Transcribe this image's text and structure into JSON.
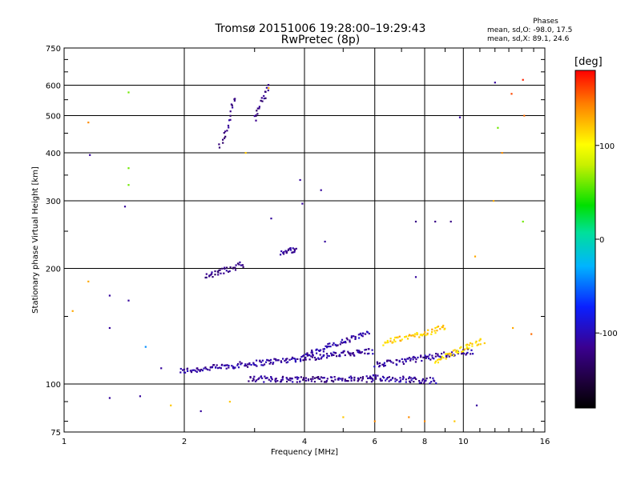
{
  "title": {
    "line1": "Tromsø 20151006 19:28:00–19:29:43",
    "line2": "RwPretec (8p)"
  },
  "phase_box": {
    "heading": "Phases",
    "o_line": "mean, sd,O: -98.0, 17.5",
    "x_line": "mean, sd,X:  89.1, 24.6"
  },
  "colorbar": {
    "unit": "[deg]",
    "tick_labels": [
      "100",
      "0",
      "-100"
    ],
    "tick_values": [
      100,
      0,
      -100
    ],
    "range": [
      -180,
      180
    ]
  },
  "chart_data": {
    "type": "scatter",
    "title": "Tromsø 20151006 19:28:00–19:29:43",
    "subtitle": "RwPretec (8p)",
    "xlabel": "Frequency [MHz]",
    "ylabel": "Stationary phase Virtual Height [km]",
    "x_scale": "log",
    "y_scale": "log",
    "xlim": [
      1,
      16
    ],
    "ylim": [
      75,
      750
    ],
    "x_ticks": [
      1,
      2,
      4,
      6,
      8,
      10,
      16
    ],
    "x_tick_labels": [
      "1",
      "2",
      "4",
      "6",
      "8",
      "10",
      "16"
    ],
    "y_ticks": [
      75,
      100,
      200,
      300,
      400,
      500,
      600,
      750
    ],
    "y_tick_labels": [
      "75",
      "100",
      "200",
      "300",
      "400",
      "500",
      "600",
      "750"
    ],
    "grid": true,
    "color_scale": "phase [deg], -180 to 180",
    "traces": [
      {
        "name": "",
        "x_start": 1.95,
        "x_end": 5.9,
        "y_start": 108,
        "y_end": 122,
        "phase": -110
      },
      {
        "name": "",
        "x_start": 2.9,
        "x_end": 6.0,
        "y_start": 103,
        "y_end": 103,
        "phase": -115
      },
      {
        "name": "",
        "x_start": 4.0,
        "x_end": 5.8,
        "y_start": 119,
        "y_end": 136,
        "phase": -105
      },
      {
        "name": "",
        "x_start": 5.8,
        "x_end": 8.5,
        "y_start": 104,
        "y_end": 102,
        "phase": -110
      },
      {
        "name": "",
        "x_start": 6.0,
        "x_end": 10.5,
        "y_start": 112,
        "y_end": 122,
        "phase": -110
      },
      {
        "name": "",
        "x_start": 2.25,
        "x_end": 2.8,
        "y_start": 190,
        "y_end": 205,
        "phase": -120
      },
      {
        "name": "",
        "x_start": 2.45,
        "x_end": 2.7,
        "y_start": 410,
        "y_end": 560,
        "phase": -120
      },
      {
        "name": "",
        "x_start": 3.0,
        "x_end": 3.25,
        "y_start": 490,
        "y_end": 600,
        "phase": -120
      },
      {
        "name": "",
        "x_start": 3.5,
        "x_end": 3.8,
        "y_start": 220,
        "y_end": 225,
        "phase": -115
      },
      {
        "name": "",
        "x_start": 6.3,
        "x_end": 9.0,
        "y_start": 128,
        "y_end": 140,
        "phase": 120
      },
      {
        "name": "",
        "x_start": 8.5,
        "x_end": 11.2,
        "y_start": 115,
        "y_end": 130,
        "phase": 110
      }
    ],
    "points": [
      {
        "x": 1.05,
        "y": 155,
        "phase": 130
      },
      {
        "x": 1.15,
        "y": 480,
        "phase": 140
      },
      {
        "x": 1.16,
        "y": 395,
        "phase": -110
      },
      {
        "x": 1.15,
        "y": 185,
        "phase": 130
      },
      {
        "x": 1.3,
        "y": 170,
        "phase": -110
      },
      {
        "x": 1.3,
        "y": 140,
        "phase": -110
      },
      {
        "x": 1.45,
        "y": 575,
        "phase": 60
      },
      {
        "x": 1.45,
        "y": 365,
        "phase": 60
      },
      {
        "x": 1.45,
        "y": 330,
        "phase": 60
      },
      {
        "x": 1.42,
        "y": 290,
        "phase": -110
      },
      {
        "x": 1.45,
        "y": 165,
        "phase": -110
      },
      {
        "x": 1.6,
        "y": 125,
        "phase": -40
      },
      {
        "x": 1.75,
        "y": 110,
        "phase": -110
      },
      {
        "x": 1.3,
        "y": 92,
        "phase": -110
      },
      {
        "x": 1.55,
        "y": 93,
        "phase": -110
      },
      {
        "x": 1.85,
        "y": 88,
        "phase": 120
      },
      {
        "x": 2.2,
        "y": 85,
        "phase": -110
      },
      {
        "x": 2.6,
        "y": 90,
        "phase": 120
      },
      {
        "x": 3.25,
        "y": 590,
        "phase": 130
      },
      {
        "x": 2.85,
        "y": 400,
        "phase": 120
      },
      {
        "x": 3.9,
        "y": 340,
        "phase": -110
      },
      {
        "x": 3.95,
        "y": 295,
        "phase": -110
      },
      {
        "x": 4.4,
        "y": 320,
        "phase": -110
      },
      {
        "x": 3.3,
        "y": 270,
        "phase": -110
      },
      {
        "x": 4.5,
        "y": 235,
        "phase": -110
      },
      {
        "x": 7.6,
        "y": 265,
        "phase": -120
      },
      {
        "x": 8.5,
        "y": 265,
        "phase": -120
      },
      {
        "x": 9.3,
        "y": 265,
        "phase": -120
      },
      {
        "x": 9.8,
        "y": 495,
        "phase": -110
      },
      {
        "x": 12.0,
        "y": 610,
        "phase": -110
      },
      {
        "x": 12.2,
        "y": 465,
        "phase": 60
      },
      {
        "x": 12.5,
        "y": 400,
        "phase": 140
      },
      {
        "x": 13.2,
        "y": 570,
        "phase": 160
      },
      {
        "x": 14.1,
        "y": 620,
        "phase": 170
      },
      {
        "x": 14.2,
        "y": 500,
        "phase": 150
      },
      {
        "x": 11.9,
        "y": 300,
        "phase": 130
      },
      {
        "x": 14.1,
        "y": 265,
        "phase": 60
      },
      {
        "x": 10.7,
        "y": 215,
        "phase": 130
      },
      {
        "x": 7.6,
        "y": 190,
        "phase": -110
      },
      {
        "x": 5.0,
        "y": 82,
        "phase": 120
      },
      {
        "x": 6.0,
        "y": 80,
        "phase": 140
      },
      {
        "x": 7.3,
        "y": 82,
        "phase": 140
      },
      {
        "x": 8.0,
        "y": 80,
        "phase": 140
      },
      {
        "x": 9.5,
        "y": 80,
        "phase": 120
      },
      {
        "x": 10.8,
        "y": 88,
        "phase": -110
      },
      {
        "x": 13.3,
        "y": 140,
        "phase": 130
      },
      {
        "x": 14.8,
        "y": 135,
        "phase": 150
      }
    ]
  }
}
